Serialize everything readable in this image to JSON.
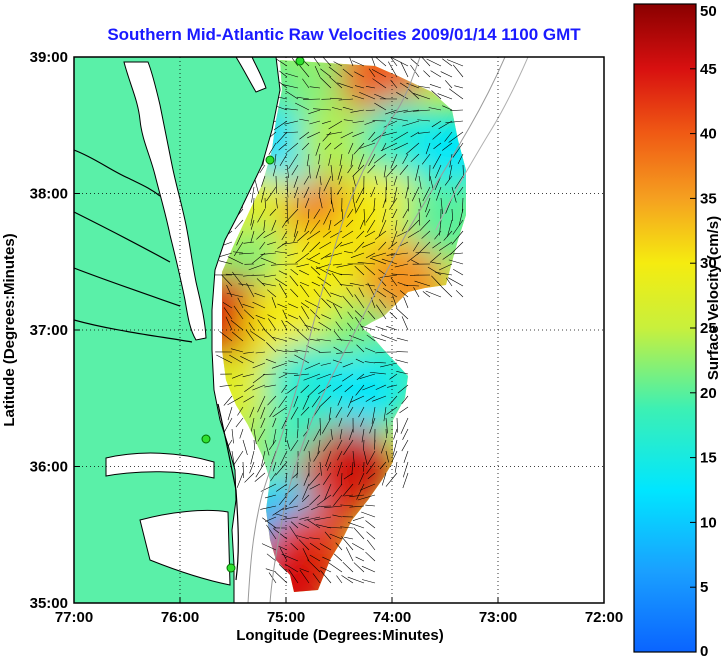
{
  "chart_data": {
    "type": "heatmap",
    "title": "Southern Mid-Atlantic Raw Velocities 2009/01/14 1100 GMT",
    "xlabel": "Longitude (Degrees:Minutes)",
    "ylabel": "Latitude (Degrees:Minutes)",
    "colorbar_label": "Surface Velocity (cm/s)",
    "xlim": [
      -77,
      -72
    ],
    "ylim": [
      35,
      39
    ],
    "x_ticks": [
      {
        "value": -77,
        "label": "77:00"
      },
      {
        "value": -76,
        "label": "76:00"
      },
      {
        "value": -75,
        "label": "75:00"
      },
      {
        "value": -74,
        "label": "74:00"
      },
      {
        "value": -73,
        "label": "73:00"
      },
      {
        "value": -72,
        "label": "72:00"
      }
    ],
    "y_ticks": [
      {
        "value": 39,
        "label": "39:00"
      },
      {
        "value": 38,
        "label": "38:00"
      },
      {
        "value": 37,
        "label": "37:00"
      },
      {
        "value": 36,
        "label": "36:00"
      },
      {
        "value": 35,
        "label": "35:00"
      }
    ],
    "colorbar": {
      "min": 0,
      "max": 50,
      "ticks": [
        {
          "value": 50,
          "label": "50"
        },
        {
          "value": 45,
          "label": "45"
        },
        {
          "value": 40,
          "label": "40"
        },
        {
          "value": 35,
          "label": "35"
        },
        {
          "value": 30,
          "label": "30"
        },
        {
          "value": 25,
          "label": "25"
        },
        {
          "value": 20,
          "label": "20"
        },
        {
          "value": 15,
          "label": "15"
        },
        {
          "value": 10,
          "label": "10"
        },
        {
          "value": 5,
          "label": "5"
        },
        {
          "value": 0,
          "label": "0"
        }
      ]
    },
    "grid": true,
    "grid_style": "dotted",
    "colormap": "jet",
    "land_color": "#5af0a8",
    "title_color": "#1a1aff",
    "regions": [
      {
        "lon": -75.2,
        "lat": 38.75,
        "speed": 20
      },
      {
        "lon": -74.6,
        "lat": 38.8,
        "speed": 22
      },
      {
        "lon": -74.1,
        "lat": 38.85,
        "speed": 40
      },
      {
        "lon": -75.05,
        "lat": 38.3,
        "speed": 12
      },
      {
        "lon": -74.5,
        "lat": 38.35,
        "speed": 24
      },
      {
        "lon": -73.9,
        "lat": 38.4,
        "speed": 17
      },
      {
        "lon": -73.4,
        "lat": 38.3,
        "speed": 13
      },
      {
        "lon": -75.2,
        "lat": 37.85,
        "speed": 28
      },
      {
        "lon": -74.6,
        "lat": 37.8,
        "speed": 38
      },
      {
        "lon": -74.1,
        "lat": 37.85,
        "speed": 30
      },
      {
        "lon": -73.5,
        "lat": 37.8,
        "speed": 20
      },
      {
        "lon": -75.3,
        "lat": 37.45,
        "speed": 22
      },
      {
        "lon": -74.7,
        "lat": 37.45,
        "speed": 30
      },
      {
        "lon": -73.9,
        "lat": 37.35,
        "speed": 36
      },
      {
        "lon": -75.55,
        "lat": 37.1,
        "speed": 45
      },
      {
        "lon": -75.0,
        "lat": 37.05,
        "speed": 30
      },
      {
        "lon": -74.3,
        "lat": 36.9,
        "speed": 22
      },
      {
        "lon": -73.95,
        "lat": 36.7,
        "speed": 18
      },
      {
        "lon": -75.35,
        "lat": 36.55,
        "speed": 28
      },
      {
        "lon": -74.8,
        "lat": 36.6,
        "speed": 16
      },
      {
        "lon": -74.3,
        "lat": 36.5,
        "speed": 13
      },
      {
        "lon": -75.3,
        "lat": 36.1,
        "speed": 24
      },
      {
        "lon": -74.8,
        "lat": 36.2,
        "speed": 18
      },
      {
        "lon": -74.4,
        "lat": 36.0,
        "speed": 46
      },
      {
        "lon": -74.7,
        "lat": 35.75,
        "speed": 44
      },
      {
        "lon": -75.1,
        "lat": 35.65,
        "speed": 14
      },
      {
        "lon": -75.05,
        "lat": 35.5,
        "speed": 8
      },
      {
        "lon": -74.8,
        "lat": 35.35,
        "speed": 42
      },
      {
        "lon": -74.95,
        "lat": 35.15,
        "speed": 45
      }
    ]
  }
}
